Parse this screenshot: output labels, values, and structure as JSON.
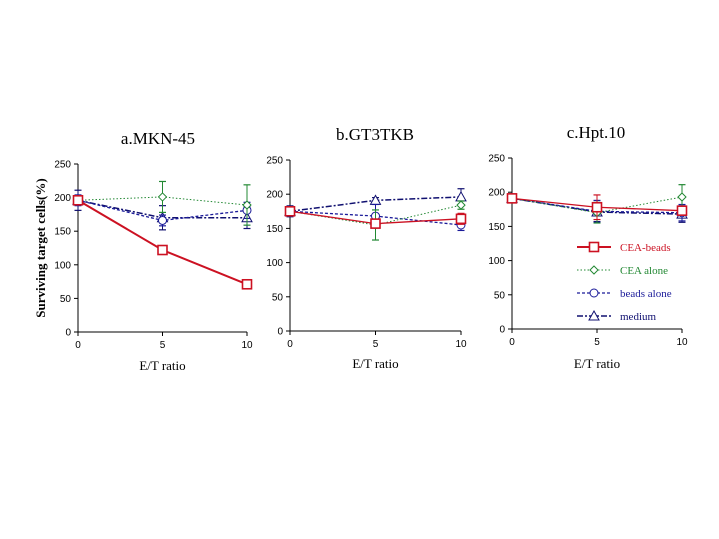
{
  "chart_data": {
    "type": "line",
    "ylabel": "Surviving target cells(%)",
    "series_styles": [
      {
        "name": "CEA-beads",
        "color": "#cc1122",
        "dash": "",
        "marker": "square",
        "width": 2
      },
      {
        "name": "CEA  alone",
        "color": "#228833",
        "dash": "1.5,2",
        "marker": "diamond",
        "width": 1
      },
      {
        "name": "beads  alone",
        "color": "#1a1a99",
        "dash": "3,2",
        "marker": "circle",
        "width": 1.3
      },
      {
        "name": "medium",
        "color": "#101070",
        "dash": "6,2,2,2",
        "marker": "triangle",
        "width": 1.5
      }
    ],
    "legend": {
      "placement": "inside-bottom-right-of-panel-c",
      "entries": [
        "CEA-beads",
        "CEA  alone",
        "beads  alone",
        "medium"
      ]
    },
    "panels": [
      {
        "title": "a.MKN-45",
        "xlabel": "E/T ratio",
        "x": [
          0,
          5,
          10
        ],
        "xticks": [
          "0",
          "5",
          "10"
        ],
        "yticks": [
          "0",
          "50",
          "100",
          "150",
          "200",
          "250"
        ],
        "xlim": [
          0,
          10
        ],
        "ylim": [
          0,
          250
        ],
        "series": [
          {
            "name": "CEA-beads",
            "values": [
              196,
              122,
              71
            ],
            "err": [
              4,
              6,
              2
            ]
          },
          {
            "name": "CEA  alone",
            "values": [
              196,
              201,
              189
            ],
            "err": [
              4,
              23,
              30
            ]
          },
          {
            "name": "beads  alone",
            "values": [
              196,
              166,
              181
            ],
            "err": [
              8,
              8,
              12
            ]
          },
          {
            "name": "medium",
            "values": [
              196,
              170,
              170
            ],
            "err": [
              15,
              18,
              16
            ]
          }
        ]
      },
      {
        "title": "b.GT3TKB",
        "xlabel": "E/T ratio",
        "x": [
          0,
          5,
          10
        ],
        "xticks": [
          "0",
          "5",
          "10"
        ],
        "yticks": [
          "0",
          "50",
          "100",
          "150",
          "200",
          "250"
        ],
        "xlim": [
          0,
          10
        ],
        "ylim": [
          0,
          250
        ],
        "series": [
          {
            "name": "CEA-beads",
            "values": [
              175,
              157,
              164
            ],
            "err": [
              3,
              4,
              8
            ]
          },
          {
            "name": "CEA  alone",
            "values": [
              175,
              155,
              184
            ],
            "err": [
              3,
              22,
              6
            ]
          },
          {
            "name": "beads  alone",
            "values": [
              175,
              168,
              155
            ],
            "err": [
              5,
              17,
              8
            ]
          },
          {
            "name": "medium",
            "values": [
              175,
              191,
              196
            ],
            "err": [
              8,
              4,
              12
            ]
          }
        ]
      },
      {
        "title": "c.Hpt.10",
        "xlabel": "E/T ratio",
        "x": [
          0,
          5,
          10
        ],
        "xticks": [
          "0",
          "5",
          "10"
        ],
        "yticks": [
          "0",
          "50",
          "100",
          "150",
          "200",
          "250"
        ],
        "xlim": [
          0,
          10
        ],
        "ylim": [
          0,
          250
        ],
        "series": [
          {
            "name": "CEA-beads",
            "values": [
              191,
              178,
              173
            ],
            "err": [
              3,
              18,
              6
            ]
          },
          {
            "name": "CEA  alone",
            "values": [
              191,
              170,
              193
            ],
            "err": [
              3,
              15,
              18
            ]
          },
          {
            "name": "beads  alone",
            "values": [
              191,
              172,
              170
            ],
            "err": [
              3,
              16,
              12
            ]
          },
          {
            "name": "medium",
            "values": [
              191,
              171,
              168
            ],
            "err": [
              3,
              14,
              12
            ]
          }
        ]
      }
    ]
  }
}
